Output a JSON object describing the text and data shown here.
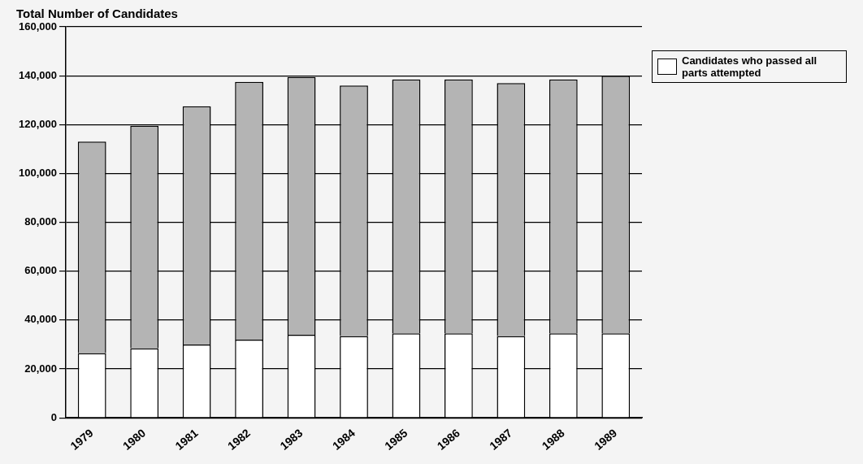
{
  "chart_data": {
    "type": "bar",
    "title": "Total Number of Candidates",
    "categories": [
      "1979",
      "1980",
      "1981",
      "1982",
      "1983",
      "1984",
      "1985",
      "1986",
      "1987",
      "1988",
      "1989"
    ],
    "stacked": true,
    "series": [
      {
        "name": "Candidates who passed all parts attempted",
        "color": "#ffffff",
        "values": [
          26500,
          28500,
          30000,
          32000,
          34000,
          33500,
          34500,
          34500,
          33500,
          34500,
          34500
        ]
      },
      {
        "color": "#b4b4b4",
        "values": [
          86500,
          91000,
          97500,
          105500,
          105500,
          102500,
          104000,
          104000,
          103500,
          104000,
          105500
        ]
      }
    ],
    "ylim": [
      0,
      160000
    ],
    "yticks": [
      0,
      {
        "value": 20000,
        "label": "20,000"
      },
      {
        "value": 40000,
        "label": "40,000"
      },
      {
        "value": 60000,
        "label": "60,000"
      },
      {
        "value": 80000,
        "label": "80,000"
      },
      {
        "value": 100000,
        "label": "100,000"
      },
      {
        "value": 120000,
        "label": "120,000"
      },
      {
        "value": 140000,
        "label": "140,000"
      },
      {
        "value": 160000,
        "label": "160,000"
      }
    ],
    "grid": "y",
    "legend": "top right"
  }
}
